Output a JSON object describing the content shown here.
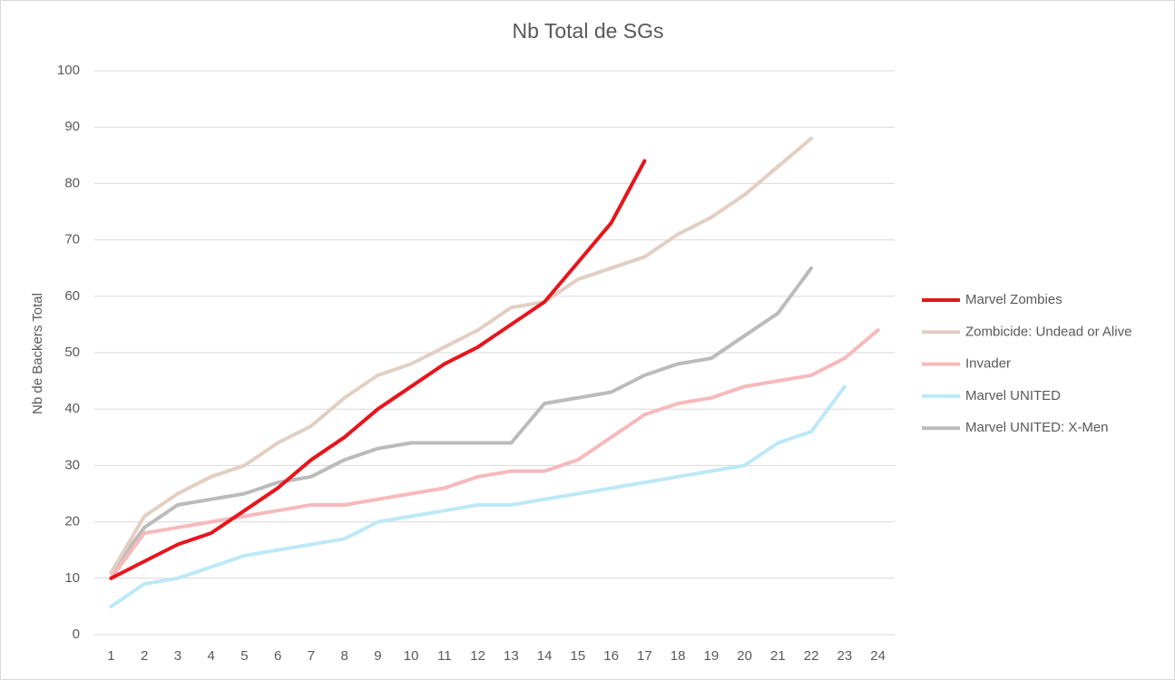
{
  "chart_data": {
    "type": "line",
    "title": "Nb Total de SGs",
    "y_label": "Nb de Backers Total",
    "categories": [
      "1",
      "2",
      "3",
      "4",
      "5",
      "6",
      "7",
      "8",
      "9",
      "10",
      "11",
      "12",
      "13",
      "14",
      "15",
      "16",
      "17",
      "18",
      "19",
      "20",
      "21",
      "22",
      "23",
      "24"
    ],
    "ylim": [
      0,
      100
    ],
    "yticks": [
      0,
      10,
      20,
      30,
      40,
      50,
      60,
      70,
      80,
      90,
      100
    ],
    "grid": true,
    "legend": "right",
    "series": [
      {
        "name": "Marvel Zombies",
        "color": "#e8141b",
        "values": [
          10,
          13,
          16,
          18,
          22,
          26,
          31,
          35,
          40,
          44,
          48,
          51,
          55,
          59,
          66,
          73,
          84,
          null,
          null,
          null,
          null,
          null,
          null,
          null
        ]
      },
      {
        "name": "Zombicide: Undead or Alive",
        "color": "#e2cfc2",
        "values": [
          11,
          21,
          25,
          28,
          30,
          34,
          37,
          42,
          46,
          48,
          51,
          54,
          58,
          59,
          63,
          65,
          67,
          71,
          74,
          78,
          83,
          88,
          null,
          null
        ]
      },
      {
        "name": "Invader",
        "color": "#f7b9bb",
        "values": [
          10,
          18,
          19,
          20,
          21,
          22,
          23,
          23,
          24,
          25,
          26,
          28,
          29,
          29,
          31,
          35,
          39,
          41,
          42,
          44,
          45,
          46,
          49,
          54
        ]
      },
      {
        "name": "Marvel UNITED",
        "color": "#bde8f7",
        "values": [
          5,
          9,
          10,
          12,
          14,
          15,
          16,
          17,
          20,
          21,
          22,
          23,
          23,
          24,
          25,
          26,
          27,
          28,
          29,
          30,
          34,
          36,
          44,
          null
        ]
      },
      {
        "name": "Marvel UNITED: X-Men",
        "color": "#bbbbbb",
        "values": [
          11,
          19,
          23,
          24,
          25,
          27,
          28,
          31,
          33,
          34,
          34,
          34,
          34,
          41,
          42,
          43,
          46,
          48,
          49,
          53,
          57,
          65,
          null,
          null
        ]
      }
    ]
  }
}
